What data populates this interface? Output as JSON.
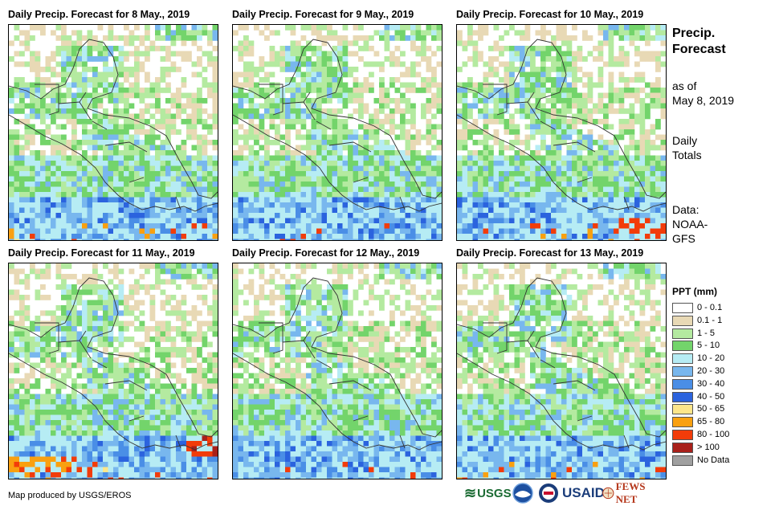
{
  "panels": [
    {
      "title": "Daily Precip. Forecast for 8 May., 2019",
      "seed": 8
    },
    {
      "title": "Daily Precip. Forecast for 9 May., 2019",
      "seed": 9
    },
    {
      "title": "Daily Precip. Forecast for 10 May., 2019",
      "seed": 10
    },
    {
      "title": "Daily Precip. Forecast for 11 May., 2019",
      "seed": 11
    },
    {
      "title": "Daily Precip. Forecast for 12 May., 2019",
      "seed": 12
    },
    {
      "title": "Daily Precip. Forecast for 13 May., 2019",
      "seed": 13
    }
  ],
  "sidebar": {
    "title_line1": "Precip.",
    "title_line2": "Forecast",
    "asof_line1": "as of",
    "asof_line2": "May 8, 2019",
    "totals_line1": "Daily",
    "totals_line2": "Totals",
    "data_line1": "Data:",
    "data_line2": "NOAA-",
    "data_line3": "GFS"
  },
  "legend": {
    "title": "PPT (mm)",
    "items": [
      {
        "label": "0 - 0.1",
        "color": "#ffffff"
      },
      {
        "label": "0.1 - 1",
        "color": "#e8d9b5"
      },
      {
        "label": "1 - 5",
        "color": "#b4eaa0"
      },
      {
        "label": "5 - 10",
        "color": "#73d46b"
      },
      {
        "label": "10 - 20",
        "color": "#b6ecf4"
      },
      {
        "label": "20 - 30",
        "color": "#78b7ee"
      },
      {
        "label": "30 - 40",
        "color": "#4a8ee6"
      },
      {
        "label": "40 - 50",
        "color": "#2b63de"
      },
      {
        "label": "50 - 65",
        "color": "#fde68a"
      },
      {
        "label": "65 - 80",
        "color": "#f9a010"
      },
      {
        "label": "80 - 100",
        "color": "#f23c0a"
      },
      {
        "label": "> 100",
        "color": "#a8201a"
      },
      {
        "label": "No Data",
        "color": "#a0a0a0"
      }
    ]
  },
  "footer": {
    "credit": "Map produced by USGS/EROS",
    "logo_usgs": "USGS",
    "logo_usaid": "USAID",
    "logo_fews": "FEWS NET"
  }
}
